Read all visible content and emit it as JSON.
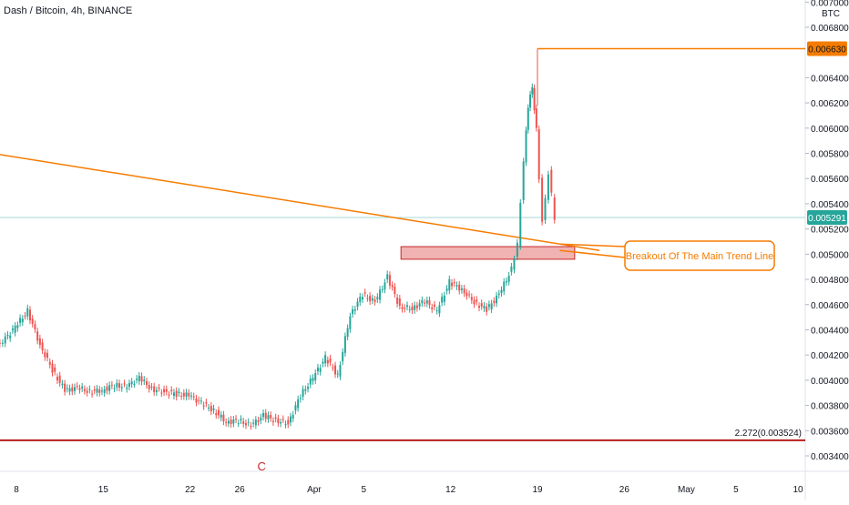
{
  "chart_data": {
    "type": "candlestick",
    "title": "Dash / Bitcoin, 4h, BINANCE",
    "currency": "BTC",
    "ylim": [
      0.00331,
      0.007
    ],
    "y_ticks": [
      "0.007000",
      "0.006800",
      "0.006400",
      "0.006200",
      "0.006000",
      "0.005800",
      "0.005600",
      "0.005400",
      "0.005200",
      "0.005000",
      "0.004800",
      "0.004600",
      "0.004400",
      "0.004200",
      "0.004000",
      "0.003800",
      "0.003600",
      "0.003400"
    ],
    "x_ticks": [
      {
        "label": "8",
        "x": "Mar 8"
      },
      {
        "label": "15",
        "x": "Mar 15"
      },
      {
        "label": "22",
        "x": "Mar 22"
      },
      {
        "label": "26",
        "x": "Mar 26"
      },
      {
        "label": "Apr",
        "x": "Apr 1"
      },
      {
        "label": "5",
        "x": "Apr 5"
      },
      {
        "label": "12",
        "x": "Apr 12"
      },
      {
        "label": "19",
        "x": "Apr 19"
      },
      {
        "label": "26",
        "x": "Apr 26"
      },
      {
        "label": "May",
        "x": "May 1"
      },
      {
        "label": "5",
        "x": "May 5"
      },
      {
        "label": "10",
        "x": "May 10"
      }
    ],
    "series": [
      {
        "path": [
          [
            "Mar 3",
            0.00431
          ],
          [
            "Mar 5",
            0.00421
          ],
          [
            "Mar 7",
            0.00431
          ],
          [
            "Mar 8",
            0.00442
          ],
          [
            "Mar 9",
            0.00455
          ],
          [
            "Mar 10",
            0.00428
          ],
          [
            "Mar 11",
            0.00408
          ],
          [
            "Mar 12",
            0.00392
          ],
          [
            "Mar 13",
            0.00394
          ],
          [
            "Mar 14",
            0.00391
          ],
          [
            "Mar 15",
            0.00392
          ],
          [
            "Mar 16",
            0.00396
          ],
          [
            "Mar 17",
            0.00395
          ],
          [
            "Mar 18",
            0.00402
          ],
          [
            "Mar 19",
            0.00393
          ],
          [
            "Mar 20",
            0.00391
          ],
          [
            "Mar 21",
            0.00389
          ],
          [
            "Mar 22",
            0.00388
          ],
          [
            "Mar 23",
            0.00382
          ],
          [
            "Mar 24",
            0.00376
          ],
          [
            "Mar 25",
            0.00367
          ],
          [
            "Mar 26",
            0.00368
          ],
          [
            "Mar 27",
            0.00364
          ],
          [
            "Mar 28",
            0.00372
          ],
          [
            "Mar 29",
            0.00368
          ],
          [
            "Mar 30",
            0.00366
          ],
          [
            "Mar 31",
            0.00388
          ],
          [
            "Apr 1",
            0.00402
          ],
          [
            "Apr 2",
            0.00418
          ],
          [
            "Apr 3",
            0.00404
          ],
          [
            "Apr 4",
            0.00452
          ],
          [
            "Apr 5",
            0.00468
          ],
          [
            "Apr 6",
            0.00462
          ],
          [
            "Apr 7",
            0.00482
          ],
          [
            "Apr 8",
            0.00458
          ],
          [
            "Apr 9",
            0.00457
          ],
          [
            "Apr 10",
            0.00463
          ],
          [
            "Apr 11",
            0.00455
          ],
          [
            "Apr 12",
            0.00478
          ],
          [
            "Apr 13",
            0.00472
          ],
          [
            "Apr 14",
            0.00462
          ],
          [
            "Apr 15",
            0.00456
          ],
          [
            "Apr 16",
            0.00468
          ],
          [
            "Apr 17",
            0.00488
          ],
          [
            "Apr 17 12:00",
            0.00508
          ],
          [
            "Apr 18",
            0.00575
          ],
          [
            "Apr 18 08:00",
            0.00618
          ],
          [
            "Apr 18 16:00",
            0.00632
          ],
          [
            "Apr 19",
            0.00598
          ],
          [
            "Apr 19 12:00",
            0.00525
          ],
          [
            "Apr 20",
            0.00565
          ],
          [
            "Apr 20 12:00",
            0.00529
          ]
        ],
        "ohlc_highlights": {
          "high": 0.0066,
          "low": 0.00353
        }
      }
    ],
    "annotations": {
      "trend_line": {
        "from": [
          "Mar 1",
          0.00588
        ],
        "to": [
          "Apr 24",
          0.00503
        ],
        "color": "#f57c00"
      },
      "support_zone": {
        "x_from": "Apr 8",
        "x_to": "Apr 22",
        "y_from": 0.00496,
        "y_to": 0.00506,
        "color": "#e57373"
      },
      "high_line": {
        "x_from": "Apr 19",
        "y": 0.00663,
        "label": "0.006630",
        "color": "#f57c00"
      },
      "fib_line": {
        "y": 0.003524,
        "label": "2.272(0.003524)",
        "color": "#b71c1c"
      },
      "current_price": {
        "y": 0.005291,
        "label": "0.005291",
        "color": "#26a69a"
      },
      "callout": {
        "text": "Breakout Of The Main Trend Line",
        "color": "#f57c00"
      },
      "wave_marker": {
        "text": "C",
        "x": "Mar 26",
        "color": "#c62828"
      }
    }
  }
}
